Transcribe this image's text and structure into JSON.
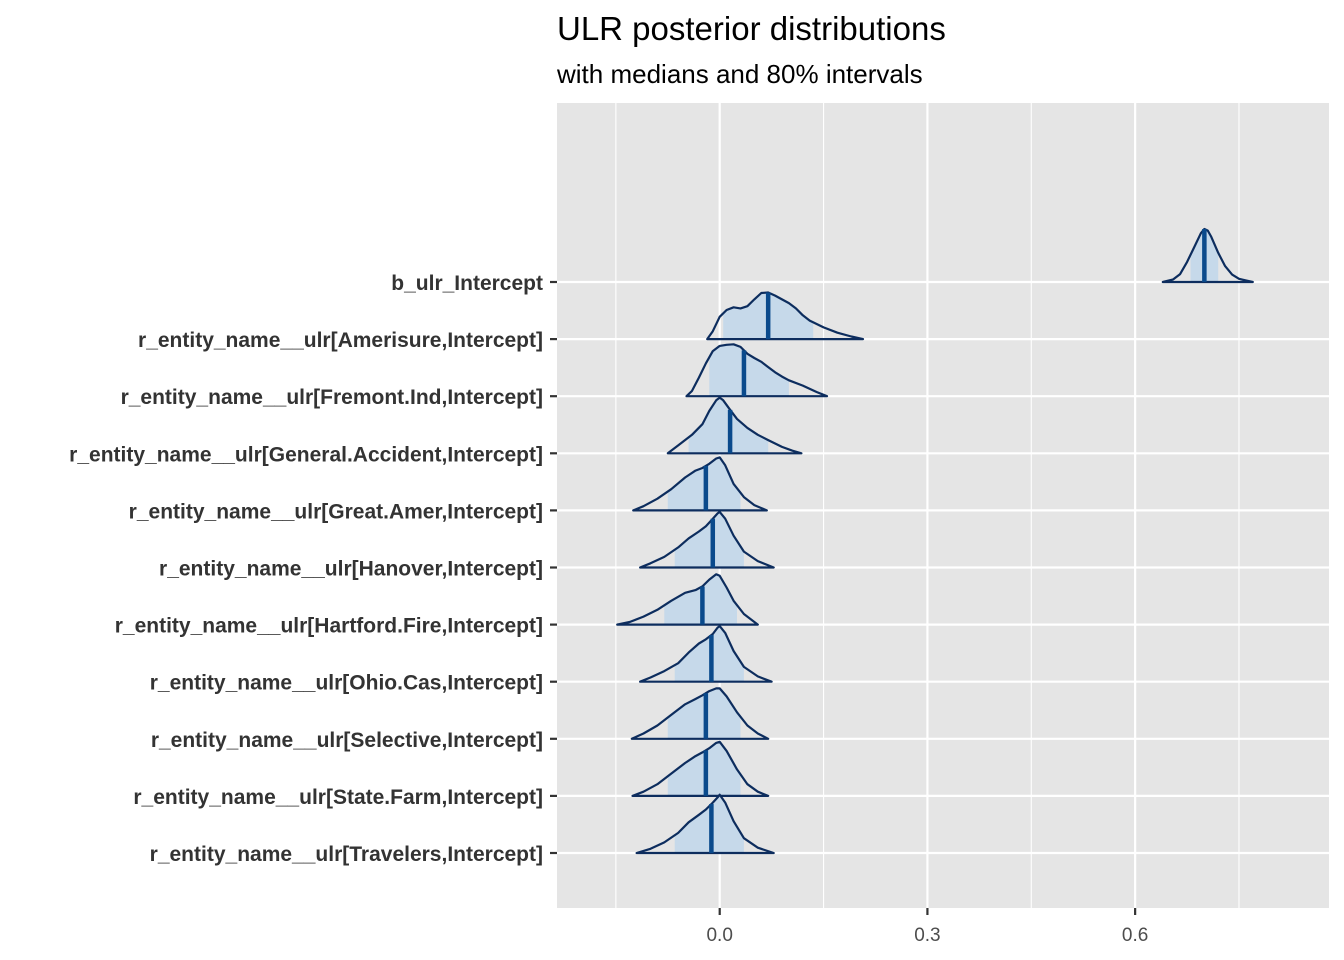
{
  "chart_data": {
    "type": "ridgeline",
    "title": "ULR posterior distributions",
    "subtitle": "with medians and 80% intervals",
    "xlabel": "",
    "ylabel": "",
    "xlim": [
      -0.235,
      0.88
    ],
    "x_ticks": [
      0.0,
      0.3,
      0.6
    ],
    "x_tick_labels": [
      "0.0",
      "0.3",
      "0.6"
    ],
    "grid": true,
    "colors": {
      "fill": "#c6d9ea",
      "line": "#0d2d5e",
      "median": "#0a4a8c",
      "panel": "#e5e5e5",
      "grid": "#ffffff"
    },
    "series": [
      {
        "name": "b_ulr_Intercept",
        "median": 0.7,
        "interval80": [
          0.68,
          0.72
        ],
        "range": [
          0.64,
          0.77
        ],
        "density": [
          [
            0.64,
            0.0
          ],
          [
            0.655,
            0.05
          ],
          [
            0.665,
            0.15
          ],
          [
            0.675,
            0.38
          ],
          [
            0.685,
            0.65
          ],
          [
            0.695,
            0.92
          ],
          [
            0.7,
            1.0
          ],
          [
            0.705,
            0.97
          ],
          [
            0.71,
            0.85
          ],
          [
            0.72,
            0.55
          ],
          [
            0.73,
            0.3
          ],
          [
            0.74,
            0.14
          ],
          [
            0.75,
            0.06
          ],
          [
            0.76,
            0.03
          ],
          [
            0.77,
            0.0
          ]
        ]
      },
      {
        "name": "r_entity_name__ulr[Amerisure,Intercept]",
        "median": 0.07,
        "interval80": [
          0.005,
          0.135
        ],
        "range": [
          -0.018,
          0.207
        ],
        "density": [
          [
            -0.018,
            0.0
          ],
          [
            -0.01,
            0.15
          ],
          [
            0.0,
            0.42
          ],
          [
            0.01,
            0.55
          ],
          [
            0.02,
            0.6
          ],
          [
            0.03,
            0.58
          ],
          [
            0.04,
            0.62
          ],
          [
            0.05,
            0.75
          ],
          [
            0.06,
            0.87
          ],
          [
            0.07,
            0.88
          ],
          [
            0.08,
            0.82
          ],
          [
            0.09,
            0.75
          ],
          [
            0.1,
            0.68
          ],
          [
            0.11,
            0.58
          ],
          [
            0.12,
            0.45
          ],
          [
            0.13,
            0.35
          ],
          [
            0.15,
            0.22
          ],
          [
            0.17,
            0.12
          ],
          [
            0.19,
            0.05
          ],
          [
            0.207,
            0.0
          ]
        ]
      },
      {
        "name": "r_entity_name__ulr[Fremont.Ind,Intercept]",
        "median": 0.035,
        "interval80": [
          -0.015,
          0.1
        ],
        "range": [
          -0.048,
          0.155
        ],
        "density": [
          [
            -0.048,
            0.0
          ],
          [
            -0.04,
            0.1
          ],
          [
            -0.03,
            0.35
          ],
          [
            -0.02,
            0.62
          ],
          [
            -0.01,
            0.85
          ],
          [
            0.0,
            0.95
          ],
          [
            0.01,
            0.97
          ],
          [
            0.02,
            0.98
          ],
          [
            0.03,
            0.93
          ],
          [
            0.04,
            0.8
          ],
          [
            0.05,
            0.72
          ],
          [
            0.06,
            0.65
          ],
          [
            0.07,
            0.55
          ],
          [
            0.08,
            0.45
          ],
          [
            0.09,
            0.37
          ],
          [
            0.1,
            0.3
          ],
          [
            0.12,
            0.2
          ],
          [
            0.14,
            0.08
          ],
          [
            0.155,
            0.0
          ]
        ]
      },
      {
        "name": "r_entity_name__ulr[General.Accident,Intercept]",
        "median": 0.015,
        "interval80": [
          -0.045,
          0.07
        ],
        "range": [
          -0.075,
          0.118
        ],
        "density": [
          [
            -0.075,
            0.0
          ],
          [
            -0.06,
            0.15
          ],
          [
            -0.04,
            0.35
          ],
          [
            -0.025,
            0.55
          ],
          [
            -0.015,
            0.8
          ],
          [
            -0.005,
            1.0
          ],
          [
            0.0,
            1.05
          ],
          [
            0.005,
            1.0
          ],
          [
            0.015,
            0.82
          ],
          [
            0.025,
            0.65
          ],
          [
            0.04,
            0.48
          ],
          [
            0.055,
            0.35
          ],
          [
            0.07,
            0.25
          ],
          [
            0.09,
            0.12
          ],
          [
            0.105,
            0.05
          ],
          [
            0.118,
            0.0
          ]
        ]
      },
      {
        "name": "r_entity_name__ulr[Great.Amer,Intercept]",
        "median": -0.02,
        "interval80": [
          -0.075,
          0.03
        ],
        "range": [
          -0.125,
          0.068
        ],
        "density": [
          [
            -0.125,
            0.0
          ],
          [
            -0.11,
            0.08
          ],
          [
            -0.09,
            0.22
          ],
          [
            -0.07,
            0.4
          ],
          [
            -0.05,
            0.62
          ],
          [
            -0.035,
            0.75
          ],
          [
            -0.025,
            0.8
          ],
          [
            -0.015,
            0.88
          ],
          [
            -0.005,
            0.98
          ],
          [
            0.0,
            1.0
          ],
          [
            0.008,
            0.85
          ],
          [
            0.02,
            0.5
          ],
          [
            0.035,
            0.25
          ],
          [
            0.05,
            0.1
          ],
          [
            0.068,
            0.0
          ]
        ]
      },
      {
        "name": "r_entity_name__ulr[Hanover,Intercept]",
        "median": -0.01,
        "interval80": [
          -0.065,
          0.035
        ],
        "range": [
          -0.115,
          0.078
        ],
        "density": [
          [
            -0.115,
            0.0
          ],
          [
            -0.1,
            0.08
          ],
          [
            -0.08,
            0.2
          ],
          [
            -0.06,
            0.38
          ],
          [
            -0.045,
            0.55
          ],
          [
            -0.03,
            0.68
          ],
          [
            -0.02,
            0.78
          ],
          [
            -0.01,
            0.92
          ],
          [
            -0.003,
            1.02
          ],
          [
            0.0,
            1.05
          ],
          [
            0.008,
            0.92
          ],
          [
            0.02,
            0.6
          ],
          [
            0.035,
            0.3
          ],
          [
            0.055,
            0.12
          ],
          [
            0.078,
            0.0
          ]
        ]
      },
      {
        "name": "r_entity_name__ulr[Hartford.Fire,Intercept]",
        "median": -0.025,
        "interval80": [
          -0.08,
          0.025
        ],
        "range": [
          -0.148,
          0.055
        ],
        "density": [
          [
            -0.148,
            0.0
          ],
          [
            -0.13,
            0.05
          ],
          [
            -0.11,
            0.15
          ],
          [
            -0.09,
            0.28
          ],
          [
            -0.07,
            0.45
          ],
          [
            -0.05,
            0.6
          ],
          [
            -0.035,
            0.65
          ],
          [
            -0.025,
            0.72
          ],
          [
            -0.015,
            0.85
          ],
          [
            -0.005,
            0.95
          ],
          [
            0.0,
            0.92
          ],
          [
            0.01,
            0.7
          ],
          [
            0.02,
            0.45
          ],
          [
            0.035,
            0.2
          ],
          [
            0.055,
            0.0
          ]
        ]
      },
      {
        "name": "r_entity_name__ulr[Ohio.Cas,Intercept]",
        "median": -0.012,
        "interval80": [
          -0.065,
          0.035
        ],
        "range": [
          -0.115,
          0.075
        ],
        "density": [
          [
            -0.115,
            0.0
          ],
          [
            -0.1,
            0.08
          ],
          [
            -0.08,
            0.2
          ],
          [
            -0.06,
            0.35
          ],
          [
            -0.045,
            0.55
          ],
          [
            -0.03,
            0.72
          ],
          [
            -0.02,
            0.8
          ],
          [
            -0.01,
            0.9
          ],
          [
            -0.003,
            1.02
          ],
          [
            0.0,
            1.05
          ],
          [
            0.008,
            0.92
          ],
          [
            0.02,
            0.58
          ],
          [
            0.035,
            0.28
          ],
          [
            0.055,
            0.1
          ],
          [
            0.075,
            0.0
          ]
        ]
      },
      {
        "name": "r_entity_name__ulr[Selective,Intercept]",
        "median": -0.02,
        "interval80": [
          -0.075,
          0.03
        ],
        "range": [
          -0.127,
          0.07
        ],
        "density": [
          [
            -0.127,
            0.0
          ],
          [
            -0.11,
            0.1
          ],
          [
            -0.09,
            0.25
          ],
          [
            -0.07,
            0.45
          ],
          [
            -0.05,
            0.65
          ],
          [
            -0.035,
            0.75
          ],
          [
            -0.025,
            0.82
          ],
          [
            -0.015,
            0.9
          ],
          [
            -0.005,
            0.95
          ],
          [
            0.0,
            0.95
          ],
          [
            0.01,
            0.8
          ],
          [
            0.025,
            0.5
          ],
          [
            0.04,
            0.25
          ],
          [
            0.055,
            0.1
          ],
          [
            0.07,
            0.0
          ]
        ]
      },
      {
        "name": "r_entity_name__ulr[State.Farm,Intercept]",
        "median": -0.02,
        "interval80": [
          -0.075,
          0.03
        ],
        "range": [
          -0.126,
          0.07
        ],
        "density": [
          [
            -0.126,
            0.0
          ],
          [
            -0.11,
            0.08
          ],
          [
            -0.09,
            0.22
          ],
          [
            -0.07,
            0.42
          ],
          [
            -0.05,
            0.62
          ],
          [
            -0.035,
            0.75
          ],
          [
            -0.025,
            0.82
          ],
          [
            -0.015,
            0.9
          ],
          [
            -0.005,
            1.0
          ],
          [
            0.0,
            1.02
          ],
          [
            0.01,
            0.85
          ],
          [
            0.025,
            0.5
          ],
          [
            0.04,
            0.22
          ],
          [
            0.055,
            0.08
          ],
          [
            0.07,
            0.0
          ]
        ]
      },
      {
        "name": "r_entity_name__ulr[Travelers,Intercept]",
        "median": -0.012,
        "interval80": [
          -0.065,
          0.035
        ],
        "range": [
          -0.12,
          0.078
        ],
        "density": [
          [
            -0.12,
            0.0
          ],
          [
            -0.1,
            0.08
          ],
          [
            -0.08,
            0.2
          ],
          [
            -0.06,
            0.38
          ],
          [
            -0.045,
            0.58
          ],
          [
            -0.03,
            0.72
          ],
          [
            -0.02,
            0.82
          ],
          [
            -0.01,
            0.95
          ],
          [
            -0.003,
            1.05
          ],
          [
            0.0,
            1.1
          ],
          [
            0.008,
            0.95
          ],
          [
            0.02,
            0.6
          ],
          [
            0.035,
            0.28
          ],
          [
            0.055,
            0.1
          ],
          [
            0.078,
            0.0
          ]
        ]
      }
    ]
  }
}
